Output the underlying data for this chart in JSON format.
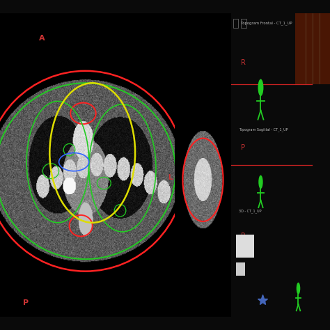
{
  "bg_color": "#0a0a0a",
  "title_text": "Topogram Frontal - CT_1_UP",
  "sagittal_label": "Topogram Sagittal - CT_1_UP",
  "label_3d": "3D - CT_1_UP",
  "text_color_red": "#cc3333",
  "text_color_light": "#bbbbbb",
  "green_color": "#22cc22",
  "blue_star_color": "#4466bb",
  "red_line_color": "#cc2222",
  "contour_red": "#ff2222",
  "contour_green": "#22cc22",
  "contour_yellow": "#dddd00",
  "contour_blue": "#3366ff"
}
